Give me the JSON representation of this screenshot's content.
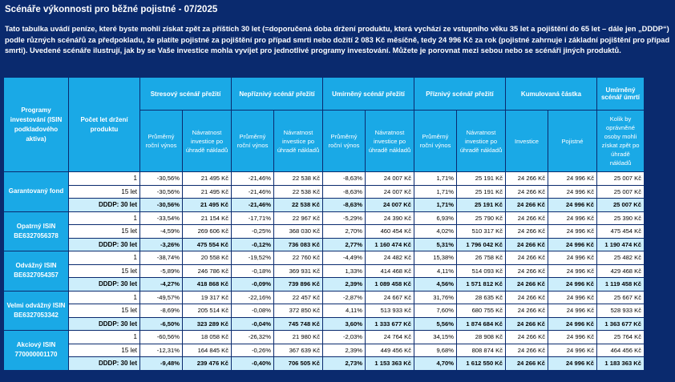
{
  "title": "Scénáře výkonnosti pro běžné pojistné - 07/2025",
  "intro": "Tato tabulka uvádí peníze, které byste mohli získat zpět za příštích 30 let (=doporučená doba držení produktu, která vychází ze vstupního věku 35 let a pojištění do 65 let – dále jen „DDDP“) podle různých scénářů za předpokladu, že platíte pojistné za pojištění pro případ smrti nebo dožití 2 083 Kč měsíčně, tedy 24 996 Kč za rok (pojistné zahrnuje i základní pojištění pro případ smrti). Uvedené scénáře ilustrují, jak by se Vaše investice mohla vyvíjet pro jednotlivé programy investování. Můžete je porovnat mezi sebou nebo se scénáři jiných produktů.",
  "header": {
    "programs": "Programy investování (ISIN podkladového aktiva)",
    "period": "Počet let držení produktu",
    "stress": "Stresový scénář přežití",
    "unfav": "Nepříznivý scénář přežití",
    "moder": "Umírněný scénář přežití",
    "fav": "Příznivý scénář přežití",
    "cumul": "Kumulovaná částka",
    "death": "Umírněný scénář úmrtí",
    "avg": "Průměrný roční výnos",
    "ret": "Návratnost investice po úhradě nákladů",
    "invest": "Investice",
    "prem": "Pojistné",
    "deathSub": "Kolik by oprávněné osoby mohli získat zpět po úhradě nákladů"
  },
  "products": [
    {
      "name": "Garantovaný fond",
      "rows": [
        [
          "1",
          "-30,56%",
          "21 495 Kč",
          "-21,46%",
          "22 538 Kč",
          "-8,63%",
          "24 007 Kč",
          "1,71%",
          "25 191 Kč",
          "24 266 Kč",
          "24 996 Kč",
          "25 007 Kč"
        ],
        [
          "15 let",
          "-30,56%",
          "21 495 Kč",
          "-21,46%",
          "22 538 Kč",
          "-8,63%",
          "24 007 Kč",
          "1,71%",
          "25 191 Kč",
          "24 266 Kč",
          "24 996 Kč",
          "25 007 Kč"
        ],
        [
          "DDDP: 30 let",
          "-30,56%",
          "21 495 Kč",
          "-21,46%",
          "22 538 Kč",
          "-8,63%",
          "24 007 Kč",
          "1,71%",
          "25 191 Kč",
          "24 266 Kč",
          "24 996 Kč",
          "25 007 Kč"
        ]
      ]
    },
    {
      "name": "Opatrný ISIN BE6327056378",
      "rows": [
        [
          "1",
          "-33,54%",
          "21 154 Kč",
          "-17,71%",
          "22 967 Kč",
          "-5,29%",
          "24 390 Kč",
          "6,93%",
          "25 790 Kč",
          "24 266 Kč",
          "24 996 Kč",
          "25 390 Kč"
        ],
        [
          "15 let",
          "-4,59%",
          "269 606 Kč",
          "-0,25%",
          "368 030 Kč",
          "2,70%",
          "460 454 Kč",
          "4,02%",
          "510 317 Kč",
          "24 266 Kč",
          "24 996 Kč",
          "475 454 Kč"
        ],
        [
          "DDDP: 30 let",
          "-3,26%",
          "475 554 Kč",
          "-0,12%",
          "736 083 Kč",
          "2,77%",
          "1 160 474 Kč",
          "5,31%",
          "1 796 042 Kč",
          "24 266 Kč",
          "24 996 Kč",
          "1 190 474 Kč"
        ]
      ]
    },
    {
      "name": "Odvážný ISIN BE6327054357",
      "rows": [
        [
          "1",
          "-38,74%",
          "20 558 Kč",
          "-19,52%",
          "22 760 Kč",
          "-4,49%",
          "24 482 Kč",
          "15,38%",
          "26 758 Kč",
          "24 266 Kč",
          "24 996 Kč",
          "25 482 Kč"
        ],
        [
          "15 let",
          "-5,89%",
          "246 786 Kč",
          "-0,18%",
          "369 931 Kč",
          "1,33%",
          "414 468 Kč",
          "4,11%",
          "514 093 Kč",
          "24 266 Kč",
          "24 996 Kč",
          "429 468 Kč"
        ],
        [
          "DDDP: 30 let",
          "-4,27%",
          "418 868 Kč",
          "-0,09%",
          "739 896 Kč",
          "2,39%",
          "1 089 458 Kč",
          "4,56%",
          "1 571 812 Kč",
          "24 266 Kč",
          "24 996 Kč",
          "1 119 458 Kč"
        ]
      ]
    },
    {
      "name": "Velmi odvážný ISIN BE6327053342",
      "rows": [
        [
          "1",
          "-49,57%",
          "19 317 Kč",
          "-22,16%",
          "22 457 Kč",
          "-2,87%",
          "24 667 Kč",
          "31,76%",
          "28 635 Kč",
          "24 266 Kč",
          "24 996 Kč",
          "25 667 Kč"
        ],
        [
          "15 let",
          "-8,69%",
          "205 514 Kč",
          "-0,08%",
          "372 850 Kč",
          "4,11%",
          "513 933 Kč",
          "7,60%",
          "680 755 Kč",
          "24 266 Kč",
          "24 996 Kč",
          "528 933 Kč"
        ],
        [
          "DDDP: 30 let",
          "-6,50%",
          "323 289 Kč",
          "-0,04%",
          "745 748 Kč",
          "3,60%",
          "1 333 677 Kč",
          "5,56%",
          "1 874 684 Kč",
          "24 266 Kč",
          "24 996 Kč",
          "1 363 677 Kč"
        ]
      ]
    },
    {
      "name": "Akciový ISIN 770000001170",
      "rows": [
        [
          "1",
          "-60,56%",
          "18 058 Kč",
          "-26,32%",
          "21 980 Kč",
          "-2,03%",
          "24 764 Kč",
          "34,15%",
          "28 908 Kč",
          "24 266 Kč",
          "24 996 Kč",
          "25 764 Kč"
        ],
        [
          "15 let",
          "-12,31%",
          "164 845 Kč",
          "-0,26%",
          "367 639 Kč",
          "2,39%",
          "449 456 Kč",
          "9,68%",
          "808 874 Kč",
          "24 266 Kč",
          "24 996 Kč",
          "464 456 Kč"
        ],
        [
          "DDDP: 30 let",
          "-9,48%",
          "239 476 Kč",
          "-0,40%",
          "706 505 Kč",
          "2,73%",
          "1 153 363 Kč",
          "4,70%",
          "1 612 550 Kč",
          "24 266 Kč",
          "24 996 Kč",
          "1 183 363 Kč"
        ]
      ]
    }
  ]
}
